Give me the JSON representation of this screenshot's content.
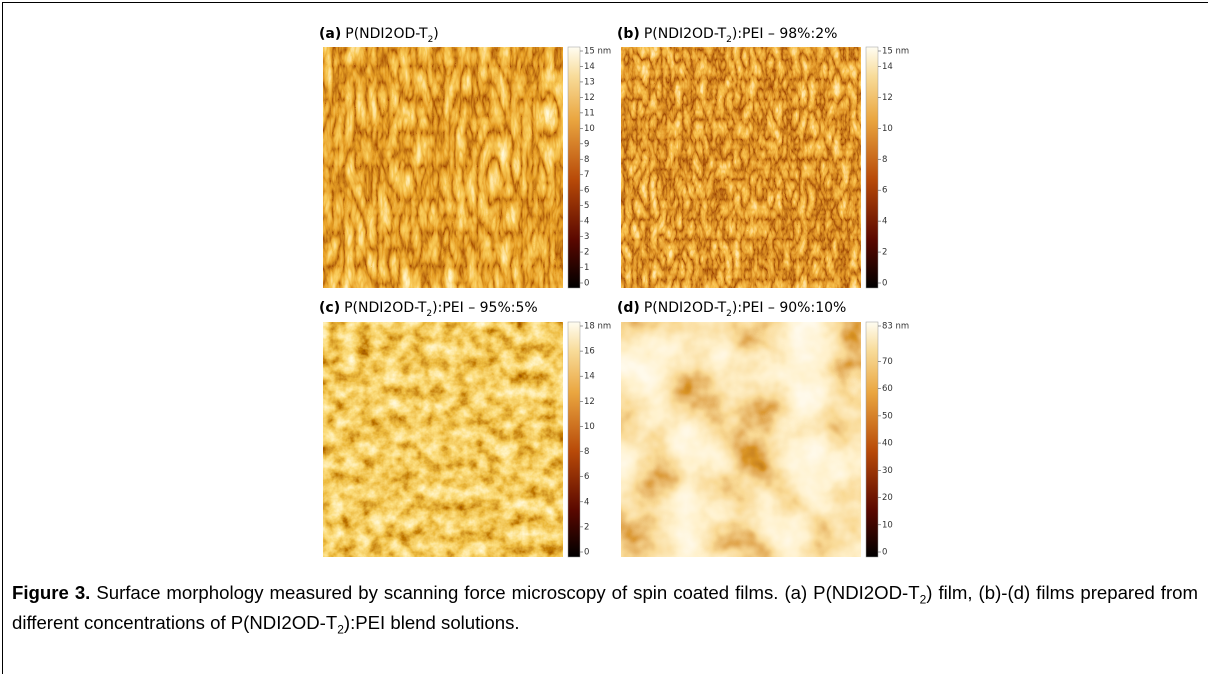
{
  "figure": {
    "panels": [
      {
        "label": "(a)",
        "title": "P(NDI2OD-T",
        "sub": "2",
        "suffix": ")",
        "colorbar": [
          {
            "value": 15,
            "label": "15 nm"
          },
          14,
          13,
          12,
          11,
          10,
          9,
          8,
          7,
          6,
          5,
          4,
          3,
          2,
          1,
          0
        ]
      },
      {
        "label": "(b)",
        "title": "P(NDI2OD-T",
        "sub": "2",
        "suffix": "):PEI – 98%:2%",
        "colorbar": [
          {
            "value": 15,
            "label": "15 nm"
          },
          14,
          12,
          10,
          8,
          6,
          4,
          2,
          0
        ]
      },
      {
        "label": "(c)",
        "title": "P(NDI2OD-T",
        "sub": "2",
        "suffix": "):PEI – 95%:5%",
        "colorbar": [
          {
            "value": 18,
            "label": "18 nm"
          },
          16,
          14,
          12,
          10,
          8,
          6,
          4,
          2,
          0
        ]
      },
      {
        "label": "(d)",
        "title": "P(NDI2OD-T",
        "sub": "2",
        "suffix": "):PEI – 90%:10%",
        "colorbar": [
          {
            "value": 83,
            "label": "83 nm"
          },
          70,
          60,
          50,
          40,
          30,
          20,
          10,
          0
        ]
      }
    ],
    "caption": {
      "label": "Figure 3.",
      "parts": [
        {
          "text": " Surface morphology measured by scanning force microscopy of spin coated films. (a) P(NDI2OD-T"
        },
        {
          "sub": "2"
        },
        {
          "text": ") film, (b)-(d) films prepared from different concentrations of P(NDI2OD-T"
        },
        {
          "sub": "2"
        },
        {
          "text": "):PEI blend solutions."
        }
      ]
    }
  }
}
